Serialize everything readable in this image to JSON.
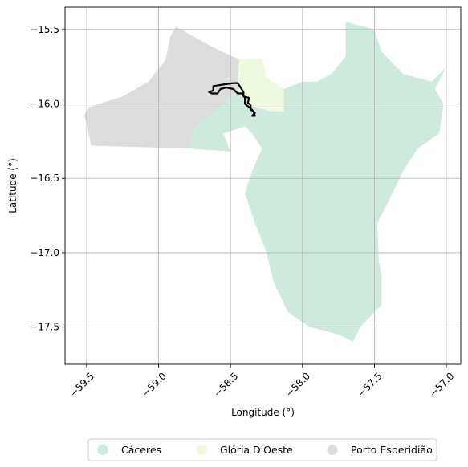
{
  "chart_data": {
    "type": "map",
    "xlabel": "Longitude (°)",
    "ylabel": "Latitude (°)",
    "xlim": [
      -59.65,
      -56.9
    ],
    "ylim": [
      -17.75,
      -15.35
    ],
    "x_ticks": [
      -59.5,
      -59.0,
      -58.5,
      -58.0,
      -57.5,
      -57.0
    ],
    "x_tick_labels": [
      "−59.5",
      "−59.0",
      "−58.5",
      "−58.0",
      "−57.5",
      "−57.0"
    ],
    "y_ticks": [
      -15.5,
      -16.0,
      -16.5,
      -17.0,
      -17.5
    ],
    "y_tick_labels": [
      "−15.5",
      "−16.0",
      "−16.5",
      "−17.0",
      "−17.5"
    ],
    "grid": true,
    "legend_position": "bottom-center",
    "regions": [
      {
        "name": "Porto Esperidião",
        "color": "#dcdcdc",
        "coords": [
          [
            -58.88,
            -15.48
          ],
          [
            -58.75,
            -15.55
          ],
          [
            -58.6,
            -15.63
          ],
          [
            -58.44,
            -15.7
          ],
          [
            -58.45,
            -15.9
          ],
          [
            -58.55,
            -16.0
          ],
          [
            -58.68,
            -16.12
          ],
          [
            -58.79,
            -16.3
          ],
          [
            -59.47,
            -16.28
          ],
          [
            -59.5,
            -16.12
          ],
          [
            -59.52,
            -16.08
          ],
          [
            -59.48,
            -16.02
          ],
          [
            -59.25,
            -15.95
          ],
          [
            -59.07,
            -15.85
          ],
          [
            -58.95,
            -15.7
          ],
          [
            -58.92,
            -15.55
          ]
        ]
      },
      {
        "name": "Glória D'Oeste",
        "color": "#edf8dc",
        "coords": [
          [
            -58.44,
            -15.7
          ],
          [
            -58.28,
            -15.7
          ],
          [
            -58.25,
            -15.82
          ],
          [
            -58.13,
            -15.9
          ],
          [
            -58.13,
            -16.05
          ],
          [
            -58.22,
            -16.05
          ],
          [
            -58.4,
            -16.0
          ],
          [
            -58.45,
            -15.9
          ]
        ]
      },
      {
        "name": "Cáceres",
        "color": "#cdeadc",
        "coords": [
          [
            -58.45,
            -15.9
          ],
          [
            -58.4,
            -16.0
          ],
          [
            -58.22,
            -16.05
          ],
          [
            -58.13,
            -16.05
          ],
          [
            -58.13,
            -15.9
          ],
          [
            -58.0,
            -15.85
          ],
          [
            -57.9,
            -15.85
          ],
          [
            -57.8,
            -15.8
          ],
          [
            -57.7,
            -15.68
          ],
          [
            -57.7,
            -15.45
          ],
          [
            -57.5,
            -15.5
          ],
          [
            -57.45,
            -15.65
          ],
          [
            -57.3,
            -15.8
          ],
          [
            -57.1,
            -15.85
          ],
          [
            -57.0,
            -15.75
          ],
          [
            -57.08,
            -15.9
          ],
          [
            -57.02,
            -16.0
          ],
          [
            -57.05,
            -16.2
          ],
          [
            -57.2,
            -16.3
          ],
          [
            -57.3,
            -16.45
          ],
          [
            -57.4,
            -16.65
          ],
          [
            -57.48,
            -16.8
          ],
          [
            -57.47,
            -17.05
          ],
          [
            -57.45,
            -17.15
          ],
          [
            -57.45,
            -17.35
          ],
          [
            -57.6,
            -17.5
          ],
          [
            -57.65,
            -17.6
          ],
          [
            -57.75,
            -17.55
          ],
          [
            -57.95,
            -17.5
          ],
          [
            -58.1,
            -17.4
          ],
          [
            -58.2,
            -17.2
          ],
          [
            -58.25,
            -17.0
          ],
          [
            -58.33,
            -16.8
          ],
          [
            -58.4,
            -16.6
          ],
          [
            -58.35,
            -16.45
          ],
          [
            -58.28,
            -16.3
          ],
          [
            -58.35,
            -16.2
          ],
          [
            -58.4,
            -16.15
          ],
          [
            -58.55,
            -16.2
          ],
          [
            -58.5,
            -16.32
          ],
          [
            -58.79,
            -16.3
          ],
          [
            -58.75,
            -16.15
          ],
          [
            -58.68,
            -16.1
          ],
          [
            -58.55,
            -16.0
          ]
        ]
      }
    ],
    "track": {
      "color": "#000000",
      "coords": [
        [
          -58.62,
          -15.91
        ],
        [
          -58.62,
          -15.88
        ],
        [
          -58.55,
          -15.87
        ],
        [
          -58.48,
          -15.86
        ],
        [
          -58.45,
          -15.86
        ],
        [
          -58.43,
          -15.89
        ],
        [
          -58.41,
          -15.92
        ],
        [
          -58.41,
          -15.95
        ],
        [
          -58.37,
          -15.96
        ],
        [
          -58.38,
          -15.99
        ],
        [
          -58.36,
          -16.01
        ],
        [
          -58.36,
          -16.04
        ],
        [
          -58.34,
          -16.05
        ],
        [
          -58.33,
          -16.08
        ],
        [
          -58.35,
          -16.08
        ],
        [
          -58.33,
          -16.06
        ],
        [
          -58.36,
          -16.03
        ],
        [
          -58.4,
          -16.0
        ],
        [
          -58.4,
          -15.96
        ],
        [
          -58.42,
          -15.93
        ],
        [
          -58.45,
          -15.93
        ],
        [
          -58.48,
          -15.9
        ],
        [
          -58.53,
          -15.89
        ],
        [
          -58.57,
          -15.9
        ],
        [
          -58.59,
          -15.93
        ],
        [
          -58.63,
          -15.93
        ],
        [
          -58.65,
          -15.92
        ],
        [
          -58.62,
          -15.91
        ]
      ]
    },
    "legend": [
      {
        "label": "Cáceres",
        "color": "#cdeadc"
      },
      {
        "label": "Glória D'Oeste",
        "color": "#edf8dc"
      },
      {
        "label": "Porto Esperidião",
        "color": "#dcdcdc"
      }
    ]
  }
}
